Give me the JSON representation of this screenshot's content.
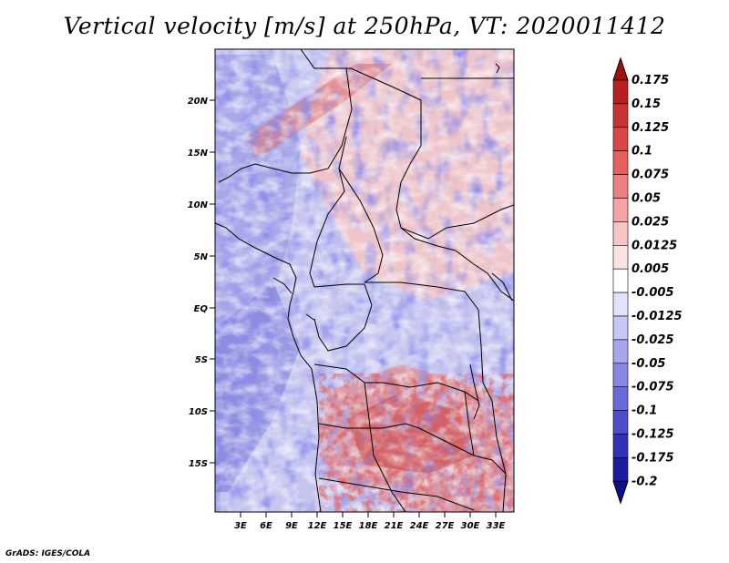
{
  "title": "Vertical velocity [m/s] at 250hPa, VT: 2020011412",
  "credit": "GrADS: IGES/COLA",
  "axes": {
    "lat_ticks": [
      "20N",
      "15N",
      "10N",
      "5N",
      "EQ",
      "5S",
      "10S",
      "15S"
    ],
    "lon_ticks": [
      "3E",
      "6E",
      "9E",
      "12E",
      "15E",
      "18E",
      "21E",
      "24E",
      "27E",
      "30E",
      "33E"
    ]
  },
  "colorbar": {
    "labels": [
      "0.175",
      "0.15",
      "0.125",
      "0.1",
      "0.075",
      "0.05",
      "0.025",
      "0.0125",
      "0.005",
      "-0.005",
      "-0.0125",
      "-0.025",
      "-0.05",
      "-0.075",
      "-0.1",
      "-0.125",
      "-0.175",
      "-0.2"
    ],
    "colors": [
      "#a01010",
      "#b82020",
      "#c83434",
      "#d84848",
      "#e46060",
      "#ec8080",
      "#f4a4a4",
      "#f8c4c4",
      "#fce2e2",
      "#ffffff",
      "#e2e2fc",
      "#c6c6f6",
      "#a6a6ee",
      "#8888e4",
      "#6a6ad8",
      "#4e4ecc",
      "#3232b8",
      "#1c1ca0",
      "#101088"
    ]
  }
}
